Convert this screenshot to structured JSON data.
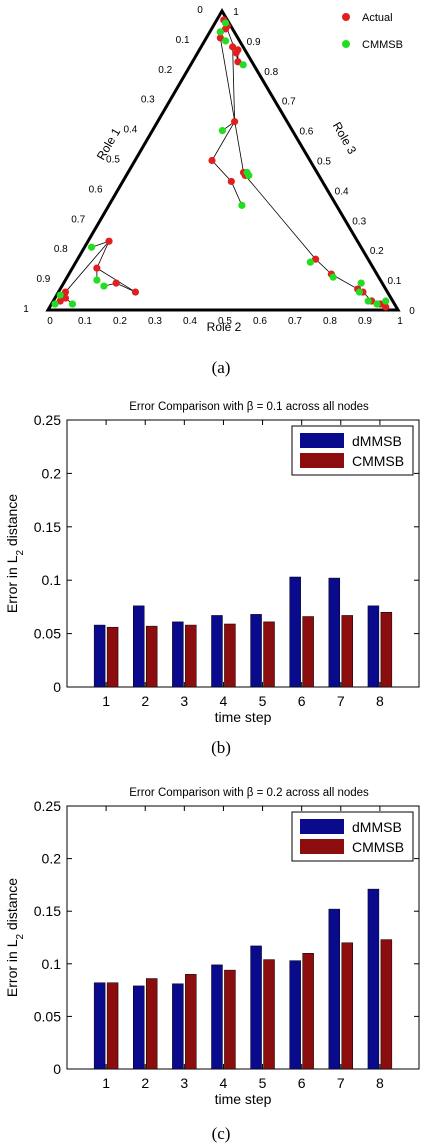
{
  "panels": {
    "a": {
      "caption": "(a)"
    },
    "b": {
      "caption": "(b)"
    },
    "c": {
      "caption": "(c)"
    }
  },
  "chart_data": [
    {
      "type": "scatter",
      "subtype": "ternary",
      "axes": {
        "left": "Role 1",
        "bottom": "Role 2",
        "right": "Role 3"
      },
      "ticks": [
        "0",
        "0.1",
        "0.2",
        "0.3",
        "0.4",
        "0.5",
        "0.6",
        "0.7",
        "0.8",
        "0.9",
        "1"
      ],
      "legend": {
        "placement": "top-right"
      },
      "series": [
        {
          "name": "Actual",
          "color": "#e02020",
          "points": [
            {
              "r1": 0.01,
              "r2": 0.03,
              "r3": 0.96
            },
            {
              "r1": 0.02,
              "r2": 0.04,
              "r3": 0.94
            },
            {
              "r1": 0.03,
              "r2": 0.06,
              "r3": 0.91
            },
            {
              "r1": 0.06,
              "r2": 0.07,
              "r3": 0.87
            },
            {
              "r1": 0.07,
              "r2": 0.08,
              "r3": 0.85
            },
            {
              "r1": 0.12,
              "r2": 0.13,
              "r3": 0.75
            },
            {
              "r1": 0.17,
              "r2": 0.15,
              "r3": 0.68
            },
            {
              "r1": 0.45,
              "r2": 0.21,
              "r3": 0.34
            },
            {
              "r1": 0.46,
              "r2": 0.21,
              "r3": 0.33
            },
            {
              "r1": 0.91,
              "r2": 0.05,
              "r3": 0.04
            },
            {
              "r1": 0.93,
              "r2": 0.04,
              "r3": 0.03
            },
            {
              "r1": 0.94,
              "r2": 0.02,
              "r3": 0.04
            },
            {
              "r1": 0.95,
              "r2": 0.01,
              "r3": 0.04
            },
            {
              "r1": 0.97,
              "r2": 0.01,
              "r3": 0.02
            },
            {
              "r1": 0.86,
              "r2": 0.03,
              "r3": 0.11
            },
            {
              "r1": 0.83,
              "r2": 0.04,
              "r3": 0.13
            },
            {
              "r1": 0.87,
              "r2": 0.02,
              "r3": 0.11
            },
            {
              "r1": 0.88,
              "r2": 0.03,
              "r3": 0.09
            },
            {
              "r1": 0.63,
              "r2": 0.15,
              "r3": 0.22
            },
            {
              "r1": 0.5,
              "r2": 0.28,
              "r3": 0.22
            },
            {
              "r1": 0.43,
              "r2": 0.26,
              "r3": 0.31
            },
            {
              "r1": 0.09,
              "r2": 0.76,
              "r3": 0.15
            },
            {
              "r1": 0.06,
              "r2": 0.72,
              "r3": 0.22
            },
            {
              "r1": 0.14,
              "r2": 0.79,
              "r3": 0.07
            },
            {
              "r1": 0.23,
              "r2": 0.71,
              "r3": 0.06
            },
            {
              "r1": 0.06,
              "r2": 0.92,
              "r3": 0.02
            },
            {
              "r1": 0.04,
              "r2": 0.93,
              "r3": 0.03
            },
            {
              "r1": 0.03,
              "r2": 0.95,
              "r3": 0.02
            }
          ]
        },
        {
          "name": "CMMSB",
          "color": "#22dd22",
          "points": [
            {
              "r1": 0.03,
              "r2": 0.02,
              "r3": 0.95
            },
            {
              "r1": 0.02,
              "r2": 0.05,
              "r3": 0.93
            },
            {
              "r1": 0.03,
              "r2": 0.07,
              "r3": 0.9
            },
            {
              "r1": 0.06,
              "r2": 0.08,
              "r3": 0.86
            },
            {
              "r1": 0.09,
              "r2": 0.06,
              "r3": 0.85
            },
            {
              "r1": 0.11,
              "r2": 0.13,
              "r3": 0.76
            },
            {
              "r1": 0.16,
              "r2": 0.17,
              "r3": 0.67
            },
            {
              "r1": 0.45,
              "r2": 0.2,
              "r3": 0.35
            },
            {
              "r1": 0.46,
              "r2": 0.2,
              "r3": 0.34
            },
            {
              "r1": 0.93,
              "r2": 0.04,
              "r3": 0.03
            },
            {
              "r1": 0.96,
              "r2": 0.01,
              "r3": 0.03
            },
            {
              "r1": 0.9,
              "r2": 0.04,
              "r3": 0.06
            },
            {
              "r1": 0.82,
              "r2": 0.03,
              "r3": 0.15
            },
            {
              "r1": 0.6,
              "r2": 0.2,
              "r3": 0.2
            },
            {
              "r1": 0.35,
              "r2": 0.27,
              "r3": 0.38
            },
            {
              "r1": 0.08,
              "r2": 0.8,
              "r3": 0.12
            },
            {
              "r1": 0.02,
              "r2": 0.92,
              "r3": 0.06
            },
            {
              "r1": 0.1,
              "r2": 0.81,
              "r3": 0.09
            },
            {
              "r1": 0.21,
              "r2": 0.77,
              "r3": 0.02
            },
            {
              "r1": 0.05,
              "r2": 0.94,
              "r3": 0.01
            },
            {
              "r1": 0.02,
              "r2": 0.97,
              "r3": 0.01
            }
          ]
        }
      ]
    },
    {
      "type": "bar",
      "title": "Error Comparison with β = 0.1 across all nodes",
      "xlabel": "time step",
      "ylabel": "Error in L2 distance",
      "ylim": [
        0,
        0.25
      ],
      "yticks": [
        "0",
        "0.05",
        "0.1",
        "0.15",
        "0.2",
        "0.25"
      ],
      "categories": [
        "1",
        "2",
        "3",
        "4",
        "5",
        "6",
        "7",
        "8"
      ],
      "legend": {
        "placement": "top-right"
      },
      "series": [
        {
          "name": "dMMSB",
          "color": "#0a0a8c",
          "values": [
            0.058,
            0.076,
            0.061,
            0.067,
            0.068,
            0.103,
            0.102,
            0.076
          ]
        },
        {
          "name": "CMMSB",
          "color": "#8b0d0d",
          "values": [
            0.056,
            0.057,
            0.058,
            0.059,
            0.061,
            0.066,
            0.067,
            0.07
          ]
        }
      ]
    },
    {
      "type": "bar",
      "title": "Error Comparison with β = 0.2 across all nodes",
      "xlabel": "time step",
      "ylabel": "Error in L2 distance",
      "ylim": [
        0,
        0.25
      ],
      "yticks": [
        "0",
        "0.05",
        "0.1",
        "0.15",
        "0.2",
        "0.25"
      ],
      "categories": [
        "1",
        "2",
        "3",
        "4",
        "5",
        "6",
        "7",
        "8"
      ],
      "legend": {
        "placement": "top-right"
      },
      "series": [
        {
          "name": "dMMSB",
          "color": "#0a0a8c",
          "values": [
            0.082,
            0.079,
            0.081,
            0.099,
            0.117,
            0.103,
            0.152,
            0.171
          ]
        },
        {
          "name": "CMMSB",
          "color": "#8b0d0d",
          "values": [
            0.082,
            0.086,
            0.09,
            0.094,
            0.104,
            0.11,
            0.12,
            0.123
          ]
        }
      ]
    }
  ]
}
